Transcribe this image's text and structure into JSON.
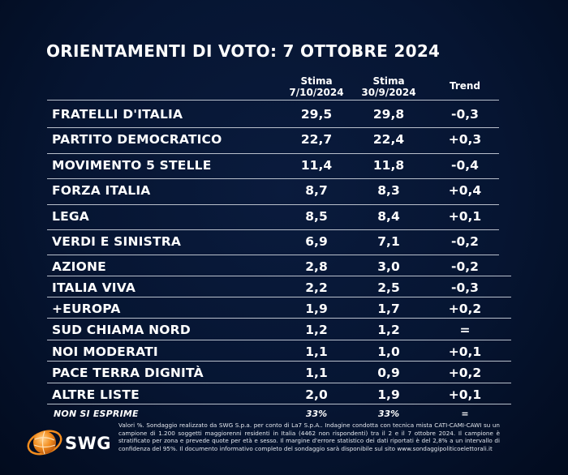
{
  "chart_data": {
    "type": "table",
    "title": "ORIENTAMENTI DI VOTO: 7 OTTOBRE 2024",
    "columns": [
      {
        "line1": "Stima",
        "line2": "7/10/2024"
      },
      {
        "line1": "Stima",
        "line2": "30/9/2024"
      },
      {
        "line1": "Trend",
        "line2": ""
      }
    ],
    "rows": [
      {
        "party": "FRATELLI D'ITALIA",
        "current": "29,5",
        "previous": "29,8",
        "trend": "-0,3"
      },
      {
        "party": "PARTITO DEMOCRATICO",
        "current": "22,7",
        "previous": "22,4",
        "trend": "+0,3"
      },
      {
        "party": "MOVIMENTO 5 STELLE",
        "current": "11,4",
        "previous": "11,8",
        "trend": "-0,4"
      },
      {
        "party": "FORZA ITALIA",
        "current": "8,7",
        "previous": "8,3",
        "trend": "+0,4"
      },
      {
        "party": "LEGA",
        "current": "8,5",
        "previous": "8,4",
        "trend": "+0,1"
      },
      {
        "party": "VERDI E SINISTRA",
        "current": "6,9",
        "previous": "7,1",
        "trend": "-0,2"
      },
      {
        "party": "AZIONE",
        "current": "2,8",
        "previous": "3,0",
        "trend": "-0,2"
      },
      {
        "party": "ITALIA VIVA",
        "current": "2,2",
        "previous": "2,5",
        "trend": "-0,3"
      },
      {
        "party": "+EUROPA",
        "current": "1,9",
        "previous": "1,7",
        "trend": "+0,2"
      },
      {
        "party": "SUD CHIAMA NORD",
        "current": "1,2",
        "previous": "1,2",
        "trend": "="
      },
      {
        "party": "NOI MODERATI",
        "current": "1,1",
        "previous": "1,0",
        "trend": "+0,1"
      },
      {
        "party": "PACE TERRA DIGNITÀ",
        "current": "1,1",
        "previous": "0,9",
        "trend": "+0,2"
      },
      {
        "party": "ALTRE LISTE",
        "current": "2,0",
        "previous": "1,9",
        "trend": "+0,1"
      }
    ],
    "abstain": {
      "party": "NON SI ESPRIME",
      "current": "33%",
      "previous": "33%",
      "trend": "="
    }
  },
  "footnote": "Valori %. Sondaggio realizzato da SWG S.p.a. per conto di La7 S.p.A.. Indagine condotta con tecnica mista CATI-CAMI-CAWI su un campione di 1.200 soggetti maggiorenni residenti in Italia (4462 non rispondenti) tra il 2 e il 7 ottobre 2024. Il campione è stratificato per zona e prevede quote per età e sesso. Il margine d'errore statistico dei dati riportati è del 2,8% a un intervallo di confidenza del 95%. Il documento informativo completo del sondaggio sarà disponibile sul sito www.sondaggipoliticoelettorali.it",
  "logo": {
    "text": "SWG",
    "icon": "swg-globe-icon"
  },
  "colors": {
    "background": "#04112a",
    "text": "#ffffff",
    "separator": "#b9c0cc",
    "logo_orange": "#f28c1e"
  }
}
